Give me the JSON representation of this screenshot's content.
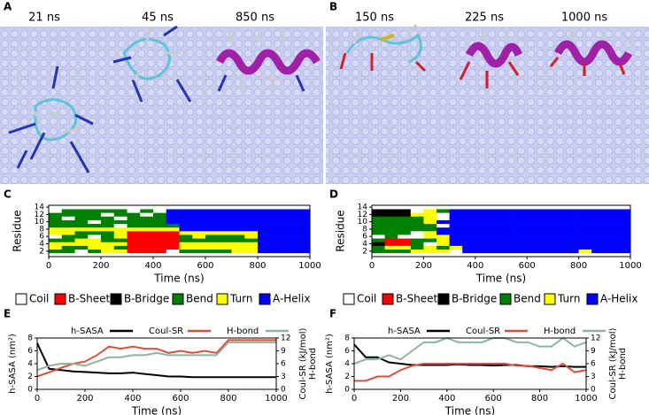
{
  "panels": [
    {
      "label": "A",
      "times": [
        "21 ns",
        "45 ns",
        "850 ns"
      ]
    },
    {
      "label": "B",
      "times": [
        "150 ns",
        "225 ns",
        "1000 ns"
      ]
    }
  ],
  "chart_data": [
    {
      "type": "heatmap",
      "label": "C",
      "ylabel": "Residue",
      "xlabel": "Time (ns)",
      "states": [
        "Coil",
        "B-Sheet",
        "B-Bridge",
        "Bend",
        "Turn",
        "A-Helix"
      ],
      "colors": [
        "#ffffff",
        "#ff0000",
        "#000000",
        "#008000",
        "#ffff00",
        "#0000ff"
      ],
      "xlim": [
        0,
        1000
      ],
      "xticks": [
        0,
        200,
        400,
        600,
        800,
        1000
      ],
      "ylim": [
        0.5,
        14.5
      ],
      "yticks": [
        2,
        4,
        6,
        8,
        10,
        12,
        14
      ],
      "bins": [
        0,
        50,
        100,
        150,
        200,
        250,
        300,
        350,
        400,
        450,
        500,
        550,
        600,
        650,
        700,
        750,
        800,
        850,
        900,
        950,
        1000
      ],
      "y": [
        1,
        2,
        3,
        4,
        5,
        6,
        7,
        8,
        9,
        10,
        11,
        12,
        13,
        14
      ],
      "rows": [
        [
          0,
          0,
          0,
          0,
          0,
          0,
          0,
          0,
          0,
          0,
          0,
          0,
          0,
          0,
          0,
          0,
          0,
          0,
          0,
          0
        ],
        [
          3,
          3,
          0,
          3,
          4,
          4,
          1,
          1,
          1,
          0,
          3,
          3,
          3,
          3,
          4,
          4,
          5,
          5,
          5,
          5
        ],
        [
          4,
          3,
          3,
          4,
          4,
          3,
          1,
          1,
          1,
          1,
          4,
          4,
          4,
          4,
          4,
          4,
          5,
          5,
          5,
          5
        ],
        [
          4,
          4,
          4,
          4,
          4,
          4,
          1,
          1,
          1,
          1,
          4,
          4,
          4,
          4,
          4,
          4,
          5,
          5,
          5,
          5
        ],
        [
          3,
          3,
          4,
          4,
          3,
          3,
          1,
          1,
          1,
          1,
          3,
          3,
          3,
          3,
          3,
          3,
          5,
          5,
          5,
          5
        ],
        [
          0,
          3,
          3,
          0,
          3,
          4,
          1,
          1,
          1,
          1,
          3,
          4,
          3,
          3,
          3,
          4,
          5,
          5,
          5,
          5
        ],
        [
          4,
          4,
          3,
          3,
          3,
          4,
          1,
          1,
          1,
          1,
          4,
          4,
          4,
          4,
          4,
          4,
          5,
          5,
          5,
          5
        ],
        [
          4,
          4,
          4,
          4,
          4,
          4,
          4,
          4,
          4,
          4,
          5,
          5,
          5,
          5,
          5,
          5,
          5,
          5,
          5,
          5
        ],
        [
          3,
          3,
          3,
          3,
          3,
          0,
          3,
          3,
          3,
          3,
          5,
          5,
          5,
          5,
          5,
          5,
          5,
          5,
          5,
          5
        ],
        [
          3,
          3,
          3,
          0,
          3,
          3,
          3,
          3,
          3,
          5,
          5,
          5,
          5,
          5,
          5,
          5,
          5,
          5,
          5,
          5
        ],
        [
          3,
          0,
          3,
          3,
          3,
          0,
          3,
          3,
          3,
          5,
          5,
          5,
          5,
          5,
          5,
          5,
          5,
          5,
          5,
          5
        ],
        [
          3,
          3,
          3,
          3,
          0,
          3,
          3,
          0,
          3,
          5,
          5,
          5,
          5,
          5,
          5,
          5,
          5,
          5,
          5,
          5
        ],
        [
          0,
          3,
          3,
          3,
          3,
          3,
          0,
          3,
          0,
          5,
          5,
          5,
          5,
          5,
          5,
          5,
          5,
          5,
          5,
          5
        ],
        [
          0,
          0,
          0,
          0,
          0,
          0,
          0,
          0,
          0,
          0,
          0,
          0,
          0,
          0,
          0,
          0,
          0,
          0,
          0,
          0
        ]
      ]
    },
    {
      "type": "heatmap",
      "label": "D",
      "ylabel": "Residue",
      "xlabel": "Time (ns)",
      "states": [
        "Coil",
        "B-Sheet",
        "B-Bridge",
        "Bend",
        "Turn",
        "A-Helix"
      ],
      "colors": [
        "#ffffff",
        "#ff0000",
        "#000000",
        "#008000",
        "#ffff00",
        "#0000ff"
      ],
      "xlim": [
        0,
        1000
      ],
      "xticks": [
        0,
        200,
        400,
        600,
        800,
        1000
      ],
      "ylim": [
        0.5,
        14.5
      ],
      "yticks": [
        2,
        4,
        6,
        8,
        10,
        12,
        14
      ],
      "bins": [
        0,
        50,
        100,
        150,
        200,
        250,
        300,
        350,
        400,
        450,
        500,
        550,
        600,
        650,
        700,
        750,
        800,
        850,
        900,
        950,
        1000
      ],
      "y": [
        1,
        2,
        3,
        4,
        5,
        6,
        7,
        8,
        9,
        10,
        11,
        12,
        13,
        14
      ],
      "rows": [
        [
          0,
          0,
          0,
          0,
          0,
          0,
          0,
          0,
          0,
          0,
          0,
          0,
          0,
          0,
          0,
          0,
          0,
          0,
          0,
          0
        ],
        [
          3,
          3,
          3,
          4,
          4,
          4,
          0,
          5,
          5,
          5,
          5,
          5,
          5,
          5,
          5,
          5,
          4,
          5,
          5,
          5
        ],
        [
          3,
          4,
          4,
          3,
          4,
          3,
          4,
          5,
          5,
          5,
          5,
          5,
          5,
          5,
          5,
          5,
          5,
          5,
          5,
          5
        ],
        [
          2,
          1,
          1,
          3,
          0,
          4,
          5,
          5,
          5,
          5,
          5,
          5,
          5,
          5,
          5,
          5,
          5,
          5,
          5,
          5
        ],
        [
          3,
          1,
          1,
          3,
          3,
          4,
          5,
          5,
          5,
          5,
          5,
          5,
          5,
          5,
          5,
          5,
          5,
          5,
          5,
          5
        ],
        [
          0,
          3,
          0,
          0,
          4,
          4,
          5,
          5,
          5,
          5,
          5,
          5,
          5,
          5,
          5,
          5,
          5,
          5,
          5,
          5
        ],
        [
          3,
          3,
          3,
          0,
          4,
          5,
          5,
          5,
          5,
          5,
          5,
          5,
          5,
          5,
          5,
          5,
          5,
          5,
          5,
          5
        ],
        [
          3,
          3,
          3,
          3,
          3,
          5,
          5,
          5,
          5,
          5,
          5,
          5,
          5,
          5,
          5,
          5,
          5,
          5,
          5,
          5
        ],
        [
          3,
          3,
          3,
          3,
          3,
          0,
          5,
          5,
          5,
          5,
          5,
          5,
          5,
          5,
          5,
          5,
          5,
          5,
          5,
          5
        ],
        [
          3,
          3,
          3,
          3,
          4,
          5,
          5,
          5,
          5,
          5,
          5,
          5,
          5,
          5,
          5,
          5,
          5,
          5,
          5,
          5
        ],
        [
          3,
          3,
          3,
          3,
          4,
          0,
          5,
          5,
          5,
          5,
          5,
          5,
          5,
          5,
          5,
          5,
          5,
          5,
          5,
          5
        ],
        [
          2,
          2,
          2,
          4,
          4,
          0,
          5,
          5,
          5,
          5,
          5,
          5,
          5,
          5,
          5,
          5,
          5,
          5,
          5,
          5
        ],
        [
          2,
          2,
          2,
          0,
          4,
          3,
          5,
          5,
          5,
          5,
          5,
          5,
          5,
          5,
          5,
          5,
          5,
          5,
          5,
          5
        ],
        [
          0,
          0,
          0,
          0,
          0,
          0,
          0,
          0,
          0,
          0,
          0,
          0,
          0,
          0,
          0,
          0,
          0,
          0,
          0,
          0
        ]
      ]
    },
    {
      "type": "line",
      "label": "E",
      "xlabel": "Time (ns)",
      "ylabel": "h-SASA (nm²)",
      "y2label": [
        "Coul-SR (kJ/mol)",
        "H-bond"
      ],
      "xlim": [
        0,
        1000
      ],
      "xticks": [
        0,
        200,
        400,
        600,
        800,
        1000
      ],
      "ylim": [
        0,
        8
      ],
      "yticks": [
        0,
        2,
        4,
        6,
        8
      ],
      "y2lim": [
        0,
        12
      ],
      "y2ticks": [
        0,
        3,
        6,
        9,
        12
      ],
      "x": [
        0,
        50,
        100,
        150,
        200,
        250,
        300,
        350,
        400,
        450,
        500,
        550,
        600,
        650,
        700,
        750,
        800,
        850,
        900,
        950,
        1000
      ],
      "series": [
        {
          "name": "h-SASA",
          "color": "#000000",
          "values": [
            7.2,
            3.2,
            3.0,
            2.8,
            2.7,
            2.6,
            2.5,
            2.5,
            2.6,
            2.4,
            2.2,
            2.0,
            2.0,
            1.9,
            1.9,
            1.9,
            1.9,
            1.9,
            1.9,
            1.9,
            1.9
          ]
        },
        {
          "name": "Coul-SR",
          "color": "#d9513e",
          "axis": "y2",
          "values": [
            3,
            4,
            5,
            6,
            6.5,
            8,
            10,
            9.5,
            10,
            9.5,
            9.5,
            8.5,
            9,
            8.5,
            9,
            8.5,
            11.5,
            11.5,
            11.5,
            11.5,
            11.5
          ]
        },
        {
          "name": "H-bond",
          "color": "#8fb39e",
          "axis": "y2",
          "values": [
            4.5,
            5.5,
            6,
            6,
            5.5,
            6.5,
            7.5,
            7.5,
            8,
            8,
            8.5,
            8,
            8,
            8,
            8,
            8,
            11,
            11,
            11,
            11,
            11
          ]
        }
      ]
    },
    {
      "type": "line",
      "label": "F",
      "xlabel": "Time (ns)",
      "ylabel": "h-SASA (nm²)",
      "y2label": [
        "Coul-SR (kJ/mol)",
        "H-bond"
      ],
      "xlim": [
        0,
        1000
      ],
      "xticks": [
        0,
        200,
        400,
        600,
        800,
        1000
      ],
      "ylim": [
        0,
        8
      ],
      "yticks": [
        0,
        2,
        4,
        6,
        8
      ],
      "y2lim": [
        0,
        12
      ],
      "y2ticks": [
        0,
        3,
        6,
        9,
        12
      ],
      "x": [
        0,
        50,
        100,
        150,
        200,
        250,
        300,
        350,
        400,
        450,
        500,
        550,
        600,
        650,
        700,
        750,
        800,
        850,
        900,
        950,
        1000
      ],
      "series": [
        {
          "name": "h-SASA",
          "color": "#000000",
          "values": [
            7,
            5,
            5,
            4.2,
            4,
            3.8,
            3.8,
            3.8,
            3.8,
            3.9,
            3.8,
            3.8,
            3.7,
            3.8,
            3.8,
            3.6,
            3.6,
            3.5,
            3.6,
            3.5,
            3.5
          ]
        },
        {
          "name": "Coul-SR",
          "color": "#d9513e",
          "axis": "y2",
          "values": [
            2,
            2,
            3,
            3,
            4.5,
            5.5,
            6,
            6,
            6,
            6,
            6,
            6,
            6,
            6,
            5.5,
            5.5,
            5,
            4.5,
            6,
            4,
            4.5
          ]
        },
        {
          "name": "H-bond",
          "color": "#8fb39e",
          "axis": "y2",
          "values": [
            6,
            7,
            7,
            8,
            7,
            9,
            11,
            11,
            12,
            11,
            11,
            11,
            12,
            12,
            11,
            11,
            10,
            10,
            12,
            10,
            11
          ]
        }
      ]
    }
  ]
}
